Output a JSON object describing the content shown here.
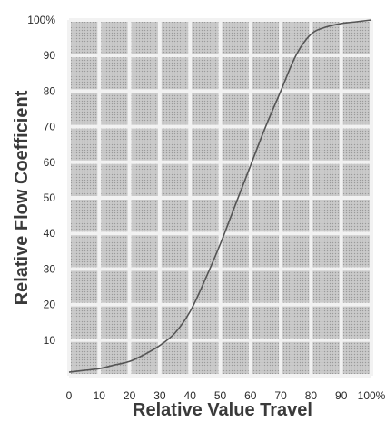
{
  "chart_data": {
    "type": "line",
    "title": "",
    "xlabel": "Relative Value Travel",
    "ylabel": "Relative Flow Coefficient",
    "xlim": [
      0,
      100
    ],
    "ylim": [
      0,
      100
    ],
    "x_ticks": [
      "0",
      "10",
      "20",
      "30",
      "40",
      "50",
      "60",
      "70",
      "80",
      "90",
      "100%"
    ],
    "y_ticks": [
      "10",
      "20",
      "30",
      "40",
      "50",
      "60",
      "70",
      "80",
      "90",
      "100%"
    ],
    "grid": true,
    "legend": "none",
    "series": [
      {
        "x": [
          0,
          5,
          10,
          15,
          20,
          25,
          30,
          35,
          40,
          45,
          50,
          55,
          60,
          65,
          70,
          75,
          80,
          85,
          90,
          95,
          100
        ],
        "y": [
          1,
          1.5,
          2,
          3,
          4,
          6,
          8.5,
          12,
          18,
          27,
          37,
          48,
          59,
          70,
          80,
          90,
          96,
          98,
          99,
          99.5,
          100
        ]
      }
    ],
    "colors": {
      "plot_bg": "#c9c9c9",
      "grid": "#f2f2f2",
      "line": "#555555"
    }
  }
}
